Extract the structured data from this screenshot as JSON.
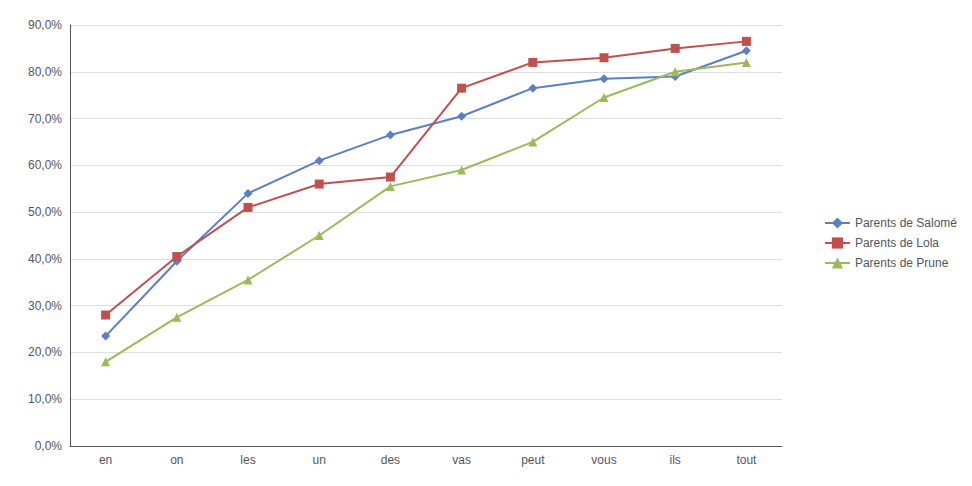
{
  "chart_data": {
    "type": "line",
    "categories": [
      "en",
      "on",
      "les",
      "un",
      "des",
      "vas",
      "peut",
      "vous",
      "ils",
      "tout"
    ],
    "series": [
      {
        "name": "Parents de Salomé",
        "color": "#5b7fc4",
        "marker": "diamond",
        "values": [
          0.235,
          0.395,
          0.54,
          0.61,
          0.665,
          0.705,
          0.765,
          0.785,
          0.79,
          0.845
        ]
      },
      {
        "name": "Parents de Lola",
        "color": "#c0504d",
        "marker": "square",
        "values": [
          0.28,
          0.405,
          0.51,
          0.56,
          0.575,
          0.765,
          0.82,
          0.83,
          0.85,
          0.865
        ]
      },
      {
        "name": "Parents de Prune",
        "color": "#9bbb59",
        "marker": "triangle",
        "values": [
          0.18,
          0.275,
          0.355,
          0.45,
          0.555,
          0.59,
          0.65,
          0.745,
          0.8,
          0.82
        ]
      }
    ],
    "ylim": [
      0.0,
      0.9
    ],
    "yticks": [
      {
        "value": 0.0,
        "label": "0,0%"
      },
      {
        "value": 0.1,
        "label": "10,0%"
      },
      {
        "value": 0.2,
        "label": "20,0%"
      },
      {
        "value": 0.3,
        "label": "30,0%"
      },
      {
        "value": 0.4,
        "label": "40,0%"
      },
      {
        "value": 0.5,
        "label": "50,0%"
      },
      {
        "value": 0.6,
        "label": "60,0%"
      },
      {
        "value": 0.7,
        "label": "70,0%"
      },
      {
        "value": 0.8,
        "label": "80,0%"
      },
      {
        "value": 0.9,
        "label": "90,0%"
      }
    ],
    "grid": true,
    "legend": "right"
  }
}
